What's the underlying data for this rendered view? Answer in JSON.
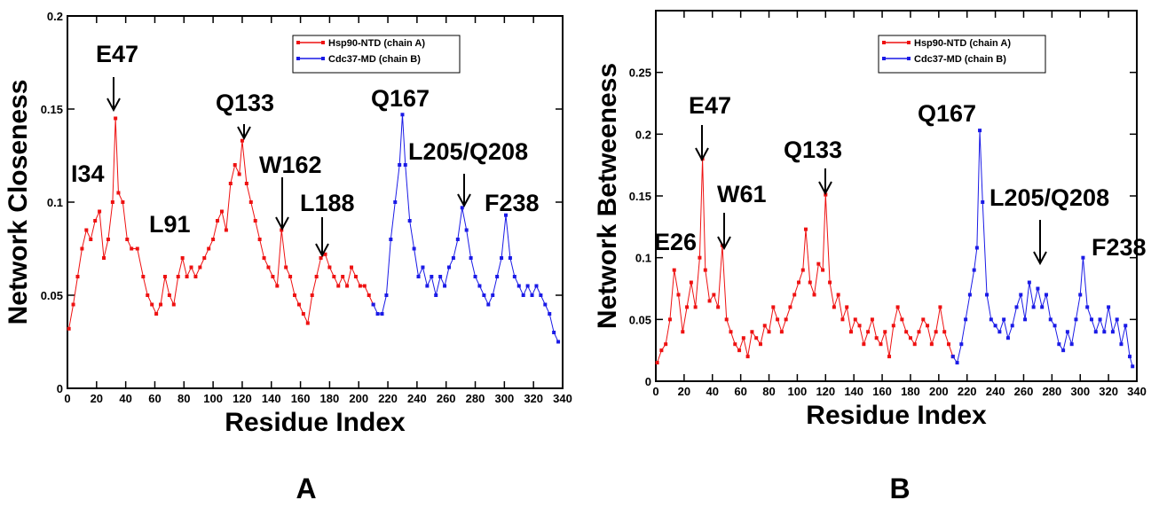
{
  "chart_data": [
    {
      "type": "line",
      "panel_label": "A",
      "xlabel": "Residue Index",
      "ylabel": "Network Closeness",
      "xlim": [
        0,
        340
      ],
      "xticks": [
        0,
        20,
        40,
        60,
        80,
        100,
        120,
        140,
        160,
        180,
        200,
        220,
        240,
        260,
        280,
        300,
        320,
        340
      ],
      "ylim": [
        0,
        0.2
      ],
      "yticks": [
        0,
        0.05,
        0.1,
        0.15,
        0.2
      ],
      "legend": "upper right",
      "annotations": [
        "I34",
        "E47",
        "Q133",
        "W162",
        "L91",
        "L188",
        "Q167",
        "L205/Q208",
        "F238"
      ],
      "series": [
        {
          "name": "Hsp90-NTD (chain A)",
          "color": "#ee1111",
          "x": [
            1,
            4,
            7,
            10,
            13,
            16,
            19,
            22,
            25,
            28,
            31,
            33,
            35,
            38,
            41,
            44,
            48,
            52,
            55,
            58,
            61,
            64,
            67,
            70,
            73,
            76,
            79,
            82,
            85,
            88,
            91,
            94,
            97,
            100,
            103,
            106,
            109,
            112,
            115,
            118,
            120,
            123,
            126,
            129,
            132,
            135,
            138,
            141,
            144,
            147,
            150,
            153,
            156,
            159,
            162,
            165,
            168,
            171,
            174,
            177,
            180,
            183,
            186,
            189,
            192,
            195,
            198,
            201,
            204,
            207,
            210
          ],
          "values": [
            0.032,
            0.045,
            0.06,
            0.075,
            0.085,
            0.08,
            0.09,
            0.095,
            0.07,
            0.08,
            0.1,
            0.145,
            0.105,
            0.1,
            0.08,
            0.075,
            0.075,
            0.06,
            0.05,
            0.045,
            0.04,
            0.045,
            0.06,
            0.05,
            0.045,
            0.06,
            0.07,
            0.06,
            0.065,
            0.06,
            0.065,
            0.07,
            0.075,
            0.08,
            0.09,
            0.095,
            0.085,
            0.11,
            0.12,
            0.115,
            0.133,
            0.11,
            0.1,
            0.09,
            0.08,
            0.07,
            0.065,
            0.06,
            0.055,
            0.085,
            0.065,
            0.06,
            0.05,
            0.045,
            0.04,
            0.035,
            0.05,
            0.06,
            0.07,
            0.072,
            0.065,
            0.06,
            0.055,
            0.06,
            0.055,
            0.065,
            0.06,
            0.055,
            0.055,
            0.05,
            0.045
          ]
        },
        {
          "name": "Cdc37-MD (chain B)",
          "color": "#1a1ae6",
          "x": [
            210,
            213,
            216,
            219,
            222,
            225,
            228,
            230,
            232,
            235,
            238,
            241,
            244,
            247,
            250,
            253,
            256,
            259,
            262,
            265,
            268,
            271,
            274,
            277,
            280,
            283,
            286,
            289,
            292,
            295,
            298,
            301,
            304,
            307,
            310,
            313,
            316,
            319,
            322,
            325,
            328,
            331,
            334,
            337
          ],
          "values": [
            0.045,
            0.04,
            0.04,
            0.05,
            0.08,
            0.1,
            0.12,
            0.147,
            0.12,
            0.09,
            0.075,
            0.06,
            0.065,
            0.055,
            0.06,
            0.05,
            0.06,
            0.055,
            0.065,
            0.07,
            0.08,
            0.097,
            0.085,
            0.07,
            0.06,
            0.055,
            0.05,
            0.045,
            0.05,
            0.06,
            0.07,
            0.093,
            0.07,
            0.06,
            0.055,
            0.05,
            0.055,
            0.05,
            0.055,
            0.05,
            0.045,
            0.04,
            0.03,
            0.025
          ]
        }
      ]
    },
    {
      "type": "line",
      "panel_label": "B",
      "xlabel": "Residue Index",
      "ylabel": "Network Betweeness",
      "xlim": [
        0,
        340
      ],
      "xticks": [
        0,
        20,
        40,
        60,
        80,
        100,
        120,
        140,
        160,
        180,
        200,
        220,
        240,
        260,
        280,
        300,
        320,
        340
      ],
      "ylim": [
        0,
        0.3
      ],
      "yticks": [
        0,
        0.05,
        0.1,
        0.15,
        0.2,
        0.25
      ],
      "legend": "upper right",
      "annotations": [
        "E47",
        "W61",
        "E26",
        "Q133",
        "Q167",
        "L205/Q208",
        "F238"
      ],
      "series": [
        {
          "name": "Hsp90-NTD (chain A)",
          "color": "#ee1111",
          "x": [
            1,
            4,
            7,
            10,
            13,
            16,
            19,
            22,
            25,
            28,
            31,
            33,
            35,
            38,
            41,
            44,
            47,
            50,
            53,
            56,
            59,
            62,
            65,
            68,
            71,
            74,
            77,
            80,
            83,
            86,
            89,
            92,
            95,
            98,
            101,
            104,
            106,
            109,
            112,
            115,
            118,
            120,
            123,
            126,
            129,
            132,
            135,
            138,
            141,
            144,
            147,
            150,
            153,
            156,
            159,
            162,
            165,
            168,
            171,
            174,
            177,
            180,
            183,
            186,
            189,
            192,
            195,
            198,
            201,
            204,
            207,
            210
          ],
          "values": [
            0.015,
            0.025,
            0.03,
            0.05,
            0.09,
            0.07,
            0.04,
            0.06,
            0.08,
            0.06,
            0.1,
            0.18,
            0.09,
            0.065,
            0.07,
            0.06,
            0.11,
            0.05,
            0.04,
            0.03,
            0.025,
            0.035,
            0.02,
            0.04,
            0.035,
            0.03,
            0.045,
            0.04,
            0.06,
            0.05,
            0.04,
            0.05,
            0.06,
            0.07,
            0.08,
            0.09,
            0.123,
            0.08,
            0.07,
            0.095,
            0.09,
            0.151,
            0.08,
            0.06,
            0.07,
            0.05,
            0.06,
            0.04,
            0.05,
            0.045,
            0.03,
            0.04,
            0.05,
            0.035,
            0.03,
            0.04,
            0.02,
            0.045,
            0.06,
            0.05,
            0.04,
            0.035,
            0.03,
            0.04,
            0.05,
            0.045,
            0.03,
            0.04,
            0.06,
            0.04,
            0.03,
            0.02
          ]
        },
        {
          "name": "Cdc37-MD (chain B)",
          "color": "#1a1ae6",
          "x": [
            210,
            213,
            216,
            219,
            222,
            225,
            227,
            229,
            231,
            234,
            237,
            240,
            243,
            246,
            249,
            252,
            255,
            258,
            261,
            264,
            267,
            270,
            273,
            276,
            279,
            282,
            285,
            288,
            291,
            294,
            297,
            300,
            302,
            305,
            308,
            311,
            314,
            317,
            320,
            323,
            326,
            329,
            332,
            335,
            337
          ],
          "values": [
            0.02,
            0.015,
            0.03,
            0.05,
            0.07,
            0.09,
            0.108,
            0.203,
            0.145,
            0.07,
            0.05,
            0.045,
            0.04,
            0.05,
            0.035,
            0.045,
            0.06,
            0.07,
            0.05,
            0.08,
            0.06,
            0.075,
            0.06,
            0.07,
            0.05,
            0.045,
            0.03,
            0.025,
            0.04,
            0.03,
            0.05,
            0.07,
            0.1,
            0.06,
            0.05,
            0.04,
            0.05,
            0.04,
            0.06,
            0.04,
            0.05,
            0.03,
            0.045,
            0.02,
            0.012
          ]
        }
      ]
    }
  ]
}
